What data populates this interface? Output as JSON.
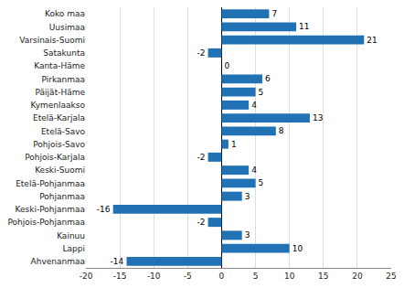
{
  "chart_data": {
    "type": "bar",
    "orientation": "horizontal",
    "categories": [
      "Koko maa",
      "Uusimaa",
      "Varsinais-Suomi",
      "Satakunta",
      "Kanta-Häme",
      "Pirkanmaa",
      "Päijät-Häme",
      "Kymenlaakso",
      "Etelä-Karjala",
      "Etelä-Savo",
      "Pohjois-Savo",
      "Pohjois-Karjala",
      "Keski-Suomi",
      "Etelä-Pohjanmaa",
      "Pohjanmaa",
      "Keski-Pohjanmaa",
      "Pohjois-Pohjanmaa",
      "Kainuu",
      "Lappi",
      "Ahvenanmaa"
    ],
    "values": [
      7,
      11,
      21,
      -2,
      0,
      6,
      5,
      4,
      13,
      8,
      1,
      -2,
      4,
      5,
      3,
      -16,
      -2,
      3,
      10,
      -14
    ],
    "color": "#2171b5",
    "xlim": [
      -20,
      25
    ],
    "xticks": [
      -20,
      -15,
      -10,
      -5,
      0,
      5,
      10,
      15,
      20,
      25
    ],
    "grid": true,
    "data_labels": true
  }
}
